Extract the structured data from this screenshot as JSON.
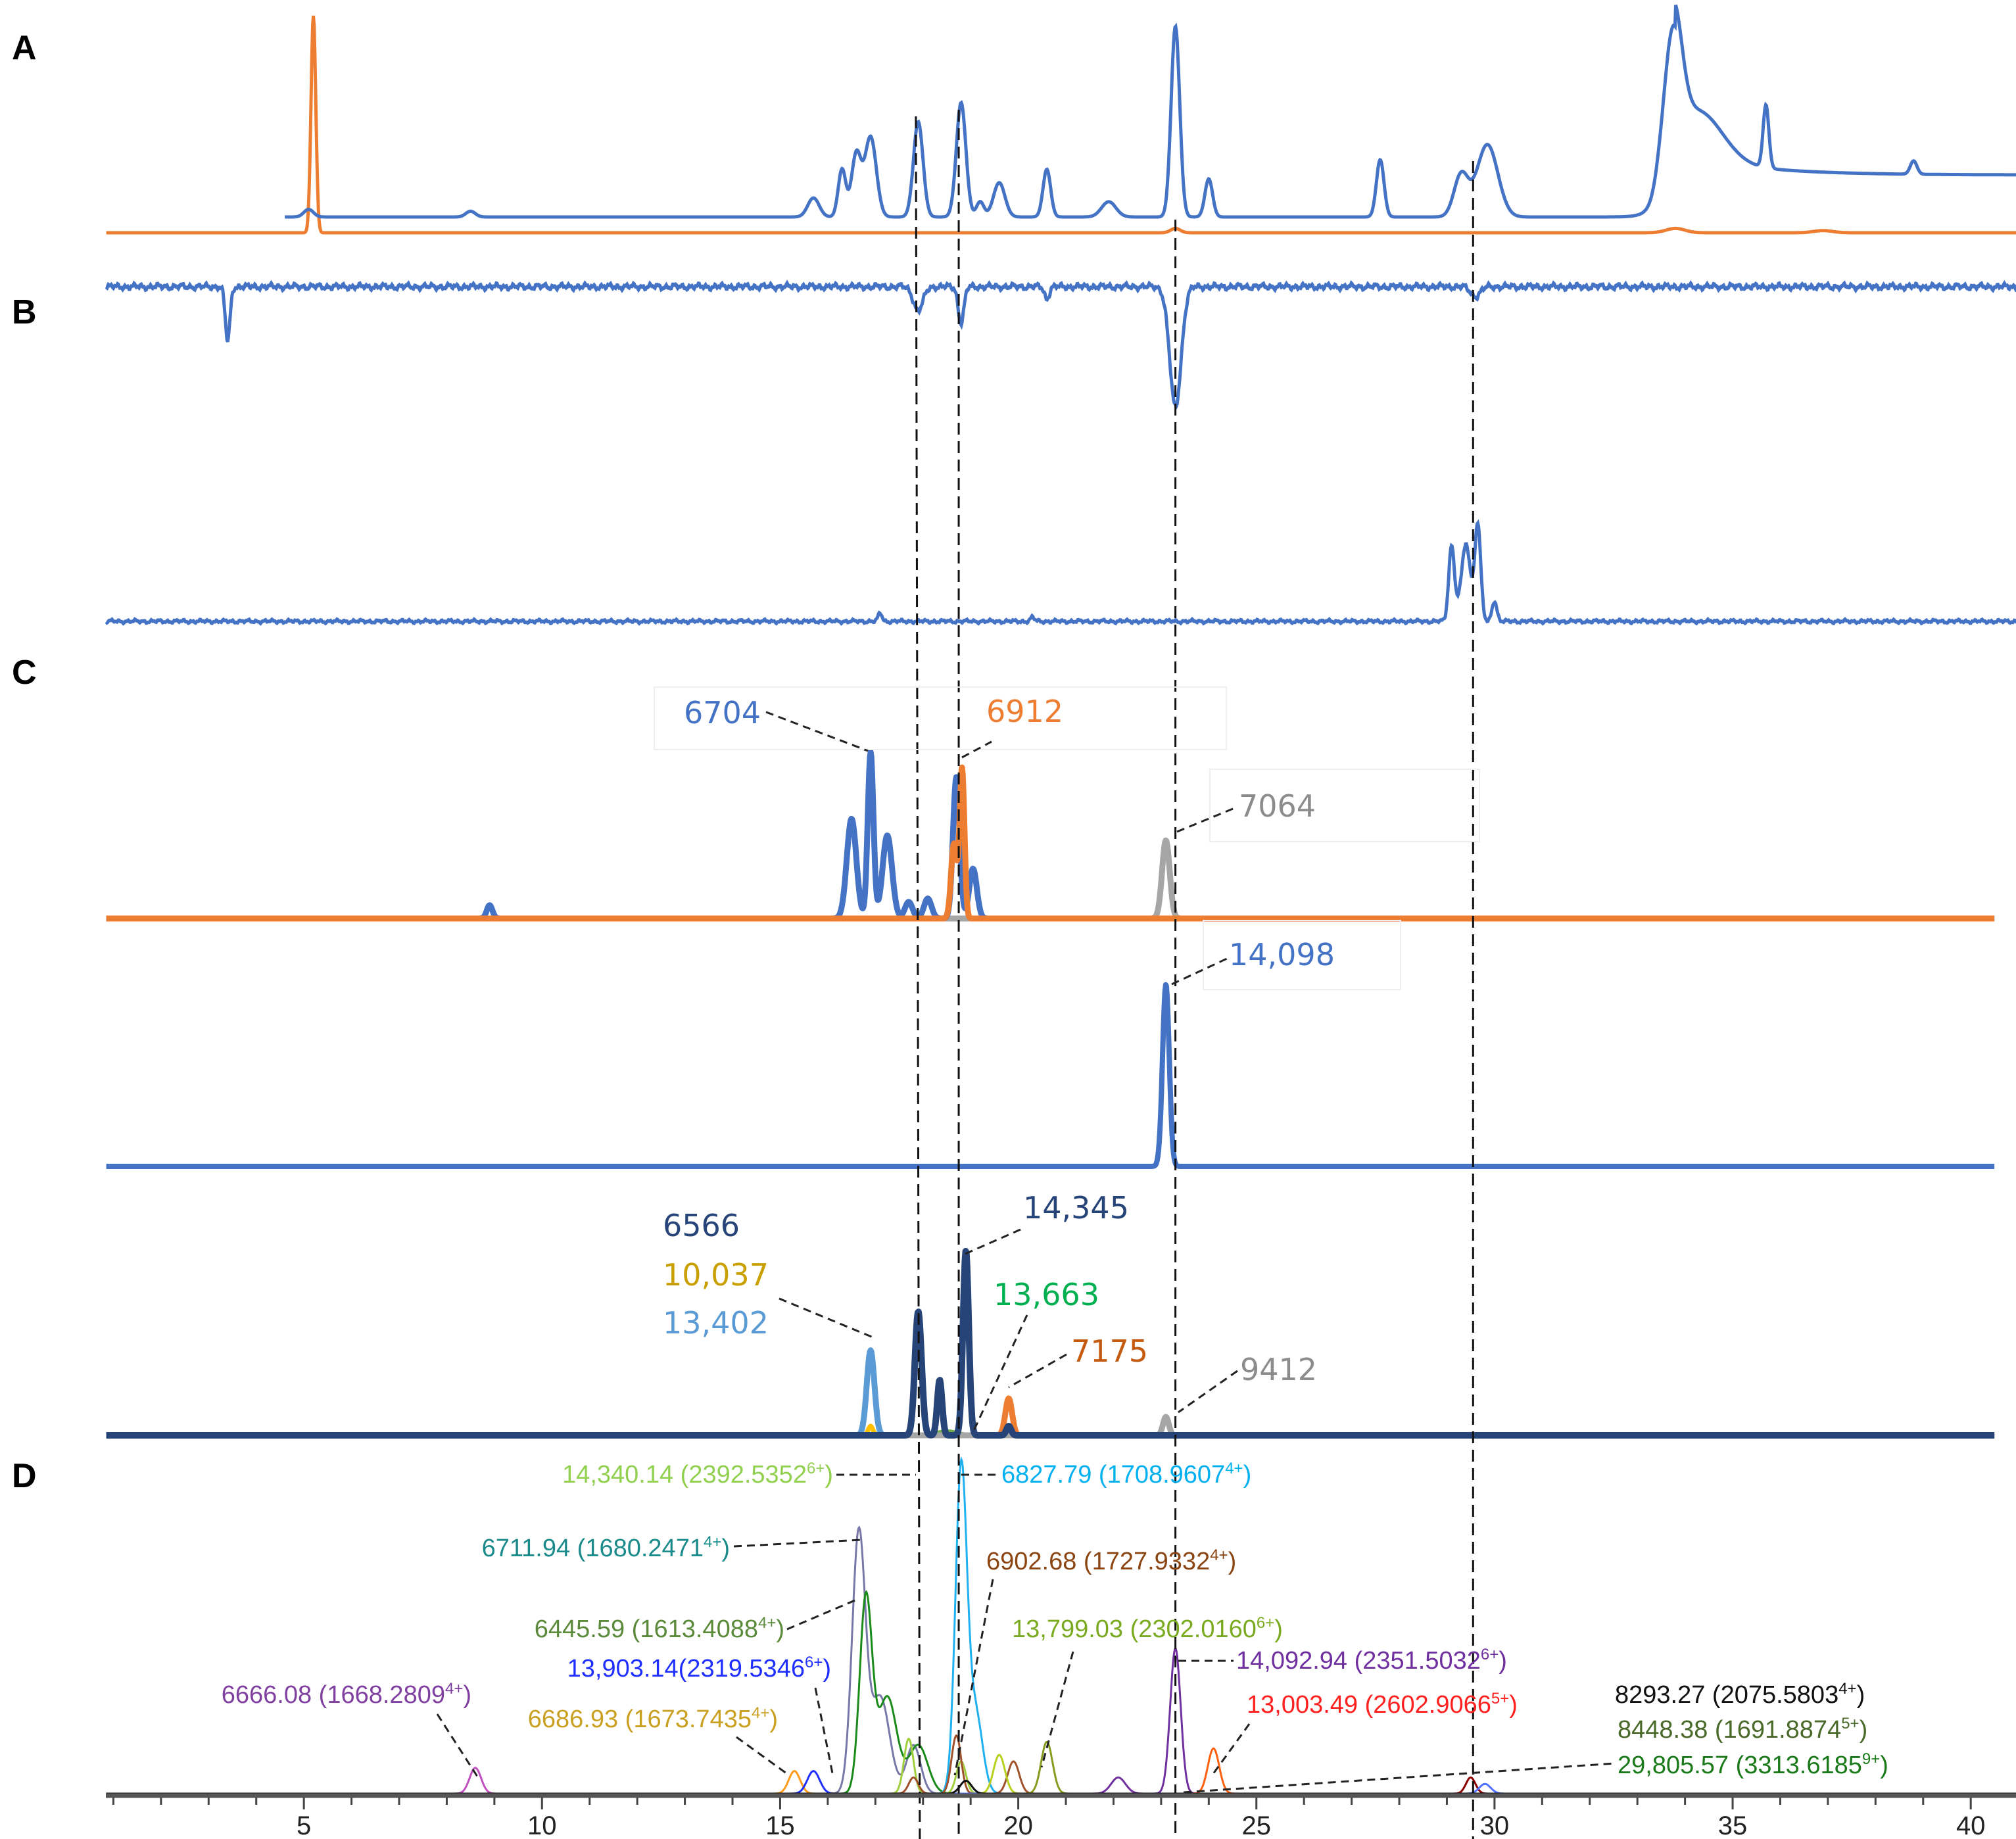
{
  "panel_labels": {
    "A": "A",
    "B": "B",
    "C": "C",
    "D": "D"
  },
  "chart_data": {
    "type": "line",
    "title": "",
    "xlabel": "",
    "ylabel": "",
    "xlim": [
      0.85,
      41
    ],
    "x_ticks": [
      5,
      10,
      15,
      20,
      25,
      30,
      35,
      40
    ],
    "marker_lines_rt": [
      17.85,
      18.75,
      23.3,
      29.55
    ],
    "panels": {
      "A": {
        "series": [
          {
            "name": "A-blue",
            "color": "#4472c4",
            "plateau": {
              "start": 33.4,
              "level": 0.22
            },
            "peaks": [
              [
                3.4,
                -0.05,
                0.08
              ],
              [
                5.1,
                0.04,
                0.1
              ],
              [
                8.5,
                0.03,
                0.1
              ],
              [
                15.7,
                0.1,
                0.12
              ],
              [
                16.3,
                0.25,
                0.08
              ],
              [
                16.6,
                0.33,
                0.1
              ],
              [
                16.9,
                0.42,
                0.12
              ],
              [
                17.9,
                0.5,
                0.1
              ],
              [
                18.8,
                0.6,
                0.1
              ],
              [
                19.2,
                0.08,
                0.08
              ],
              [
                19.6,
                0.18,
                0.12
              ],
              [
                20.6,
                0.25,
                0.08
              ],
              [
                21.9,
                0.08,
                0.15
              ],
              [
                23.3,
                1.0,
                0.09
              ],
              [
                24.0,
                0.2,
                0.08
              ],
              [
                27.6,
                0.3,
                0.08
              ],
              [
                29.3,
                0.22,
                0.15
              ],
              [
                29.85,
                0.38,
                0.22
              ],
              [
                33.75,
                0.65,
                0.18
              ],
              [
                34.3,
                0.25,
                0.5
              ],
              [
                35.7,
                0.33,
                0.06
              ],
              [
                38.8,
                0.07,
                0.07
              ]
            ]
          },
          {
            "name": "A-orange",
            "color": "#ed7d31",
            "peaks": [
              [
                5.2,
                1.0,
                0.05
              ],
              [
                23.3,
                0.02,
                0.1
              ],
              [
                33.8,
                0.02,
                0.2
              ],
              [
                36.9,
                0.01,
                0.2
              ]
            ]
          }
        ]
      },
      "B": {
        "series": [
          {
            "name": "B-upper",
            "color": "#4472c4",
            "peaks": [
              [
                3.4,
                -0.45,
                0.05
              ],
              [
                17.9,
                -0.2,
                0.1
              ],
              [
                18.8,
                -0.3,
                0.06
              ],
              [
                20.6,
                -0.1,
                0.05
              ],
              [
                23.3,
                -1.0,
                0.12
              ],
              [
                29.6,
                -0.08,
                0.1
              ]
            ]
          },
          {
            "name": "B-lower",
            "color": "#4472c4",
            "peaks": [
              [
                17.1,
                0.06,
                0.04
              ],
              [
                20.3,
                0.03,
                0.04
              ],
              [
                29.1,
                0.55,
                0.06
              ],
              [
                29.4,
                0.55,
                0.1
              ],
              [
                29.65,
                0.7,
                0.06
              ],
              [
                30.0,
                0.15,
                0.05
              ]
            ]
          }
        ]
      },
      "C": {
        "traces": [
          {
            "name": "C1-gray",
            "color": "#a6a6a6",
            "peaks": [
              [
                23.1,
                0.47,
                0.08
              ]
            ]
          },
          {
            "name": "C1-blue",
            "color": "#4472c4",
            "peaks": [
              [
                8.9,
                0.08,
                0.06
              ],
              [
                16.5,
                0.6,
                0.1
              ],
              [
                16.9,
                1.0,
                0.06
              ],
              [
                17.25,
                0.5,
                0.1
              ],
              [
                17.7,
                0.1,
                0.08
              ],
              [
                18.1,
                0.12,
                0.08
              ],
              [
                18.7,
                0.85,
                0.07
              ],
              [
                19.05,
                0.3,
                0.08
              ]
            ]
          },
          {
            "name": "C1-orange",
            "color": "#ed7d31",
            "peaks": [
              [
                18.65,
                0.45,
                0.06
              ],
              [
                18.82,
                0.9,
                0.05
              ]
            ]
          },
          {
            "name": "C2-blue",
            "color": "#4472c4",
            "peaks": [
              [
                23.1,
                1.0,
                0.07
              ]
            ]
          },
          {
            "name": "C3-lightblue",
            "color": "#5b9bd5",
            "peaks": [
              [
                16.9,
                0.46,
                0.08
              ]
            ]
          },
          {
            "name": "C3-yellow",
            "color": "#ffc000",
            "peaks": [
              [
                16.9,
                0.05,
                0.05
              ]
            ]
          },
          {
            "name": "C3-green",
            "color": "#70ad47",
            "peaks": [
              [
                18.5,
                0.02,
                0.2
              ]
            ]
          },
          {
            "name": "C3-orange",
            "color": "#ed7d31",
            "peaks": [
              [
                19.8,
                0.2,
                0.07
              ]
            ]
          },
          {
            "name": "C3-gray",
            "color": "#a6a6a6",
            "peaks": [
              [
                23.1,
                0.1,
                0.06
              ]
            ]
          },
          {
            "name": "C3-navy",
            "color": "#264478",
            "peaks": [
              [
                17.9,
                0.67,
                0.07
              ],
              [
                18.35,
                0.3,
                0.05
              ],
              [
                18.9,
                1.0,
                0.06
              ],
              [
                19.8,
                0.05,
                0.05
              ]
            ]
          }
        ],
        "labels": [
          {
            "text": "6704",
            "color": "#4472c4"
          },
          {
            "text": "6912",
            "color": "#ed7d31"
          },
          {
            "text": "7064",
            "color": "#8c8c8c"
          },
          {
            "text": "14,098",
            "color": "#4472c4"
          },
          {
            "text": "6566",
            "color": "#264478"
          },
          {
            "text": "10,037",
            "color": "#c9a000"
          },
          {
            "text": "13,402",
            "color": "#5b9bd5"
          },
          {
            "text": "14,345",
            "color": "#264478"
          },
          {
            "text": "13,663",
            "color": "#00b050"
          },
          {
            "text": "7175",
            "color": "#c55a11"
          },
          {
            "text": "9412",
            "color": "#8c8c8c"
          }
        ]
      },
      "D": {
        "traces": [
          {
            "name": "6666.08",
            "color": "#c050c0",
            "peaks": [
              [
                8.6,
                0.08,
                0.12
              ]
            ]
          },
          {
            "name": "6686.93",
            "color": "#ff9a1a",
            "peaks": [
              [
                15.3,
                0.07,
                0.12
              ]
            ]
          },
          {
            "name": "13,903.14",
            "color": "#1f2fff",
            "peaks": [
              [
                15.7,
                0.07,
                0.13
              ]
            ]
          },
          {
            "name": "6711.94",
            "color": "#7878a8",
            "peaks": [
              [
                16.65,
                0.8,
                0.14
              ],
              [
                17.1,
                0.3,
                0.2
              ],
              [
                17.8,
                0.15,
                0.15
              ]
            ]
          },
          {
            "name": "6445.59",
            "color": "#1a8a1a",
            "peaks": [
              [
                16.8,
                0.6,
                0.13
              ],
              [
                17.25,
                0.3,
                0.2
              ],
              [
                17.9,
                0.15,
                0.2
              ]
            ]
          },
          {
            "name": "14,340.14",
            "color": "#a0d040",
            "peaks": [
              [
                17.7,
                0.17,
                0.1
              ],
              [
                18.8,
                0.1,
                0.1
              ]
            ]
          },
          {
            "name": "6827.79",
            "color": "#1fb0f0",
            "peaks": [
              [
                18.8,
                1.0,
                0.12
              ],
              [
                19.1,
                0.25,
                0.15
              ]
            ]
          },
          {
            "name": "6902.68",
            "color": "#a0522d",
            "peaks": [
              [
                17.8,
                0.05,
                0.1
              ],
              [
                18.7,
                0.18,
                0.1
              ],
              [
                19.9,
                0.1,
                0.12
              ]
            ]
          },
          {
            "name": "yellow-green",
            "color": "#b8d020",
            "peaks": [
              [
                19.6,
                0.12,
                0.12
              ]
            ]
          },
          {
            "name": "13,799.03",
            "color": "#8a9a20",
            "peaks": [
              [
                20.6,
                0.16,
                0.12
              ]
            ]
          },
          {
            "name": "14,092.94",
            "color": "#7030a0",
            "peaks": [
              [
                22.1,
                0.05,
                0.15
              ],
              [
                23.3,
                0.45,
                0.11
              ]
            ]
          },
          {
            "name": "13,003.49",
            "color": "#ff6010",
            "peaks": [
              [
                24.1,
                0.14,
                0.12
              ]
            ]
          },
          {
            "name": "8293.27",
            "color": "#8b0000",
            "peaks": [
              [
                29.5,
                0.05,
                0.1
              ]
            ]
          },
          {
            "name": "29,805.57",
            "color": "#5070ff",
            "peaks": [
              [
                29.8,
                0.03,
                0.12
              ]
            ]
          },
          {
            "name": "black",
            "color": "#111111",
            "peaks": [
              [
                18.9,
                0.04,
                0.12
              ]
            ]
          }
        ],
        "labels": [
          {
            "mass": "14,340.14 (2392.5352",
            "charge": "6+",
            "close": ")",
            "color": "#92d050"
          },
          {
            "mass": "6827.79 (1708.9607",
            "charge": "4+",
            "close": ")",
            "color": "#00b0f0"
          },
          {
            "mass": "6711.94 (1680.2471",
            "charge": "4+",
            "close": ")",
            "color": "#1a8a8a"
          },
          {
            "mass": "6902.68 (1727.9332",
            "charge": "4+",
            "close": ")",
            "color": "#8b4513"
          },
          {
            "mass": "6445.59 (1613.4088",
            "charge": "4+",
            "close": ")",
            "color": "#5a8a3a"
          },
          {
            "mass": "13,799.03 (2302.0160",
            "charge": "6+",
            "close": ")",
            "color": "#7aaa20"
          },
          {
            "mass": "13,903.14(2319.5346",
            "charge": "6+",
            "close": ")",
            "color": "#1f2fff"
          },
          {
            "mass": "14,092.94 (2351.5032",
            "charge": "6+",
            "close": ")",
            "color": "#7030a0"
          },
          {
            "mass": "6666.08 (1668.2809",
            "charge": "4+",
            "close": ")",
            "color": "#8040a0"
          },
          {
            "mass": "13,003.49 (2602.9066",
            "charge": "5+",
            "close": ")",
            "color": "#ff2020"
          },
          {
            "mass": "6686.93 (1673.7435",
            "charge": "4+",
            "close": ")",
            "color": "#c9a020"
          },
          {
            "mass": "8293.27 (2075.5803",
            "charge": "4+",
            "close": ")",
            "color": "#111111"
          },
          {
            "mass": "8448.38 (1691.8874",
            "charge": "5+",
            "close": ")",
            "color": "#4a6a2a"
          },
          {
            "mass": "29,805.57 (3313.6185",
            "charge": "9+",
            "close": ")",
            "color": "#1a7a1a"
          }
        ]
      }
    }
  }
}
